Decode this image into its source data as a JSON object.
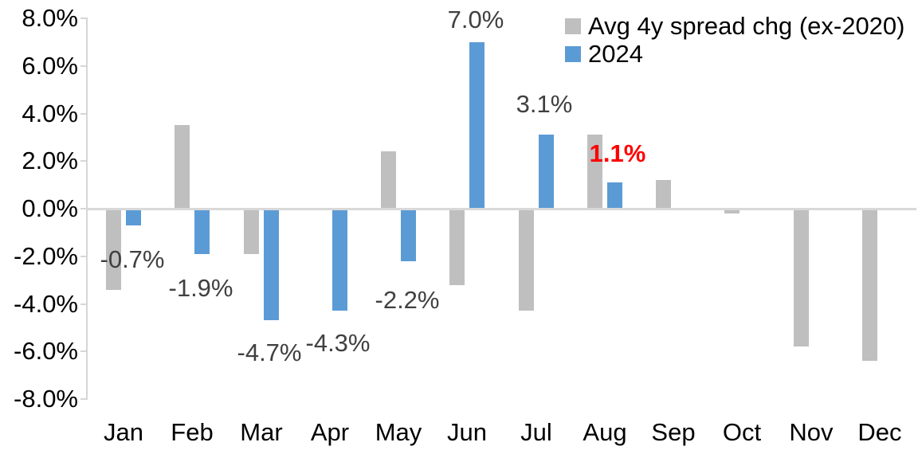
{
  "chart_data": {
    "type": "bar",
    "title": "",
    "xlabel": "",
    "ylabel": "",
    "categories": [
      "Jan",
      "Feb",
      "Mar",
      "Apr",
      "May",
      "Jun",
      "Jul",
      "Aug",
      "Sep",
      "Oct",
      "Nov",
      "Dec"
    ],
    "series": [
      {
        "name": "Avg 4y spread chg (ex-2020)",
        "color": "#BFBFBF",
        "values": [
          -3.4,
          3.5,
          -1.9,
          0.0,
          2.4,
          -3.2,
          -4.3,
          3.1,
          1.2,
          -0.2,
          -5.8,
          -6.4
        ]
      },
      {
        "name": "2024",
        "color": "#5B9BD5",
        "values": [
          -0.7,
          -1.9,
          -4.7,
          -4.3,
          -2.2,
          7.0,
          3.1,
          1.1,
          null,
          null,
          null,
          null
        ]
      }
    ],
    "data_labels": [
      {
        "category": "Jan",
        "text": "-0.7%",
        "color": "#404040",
        "bold": false,
        "dx": -2,
        "gap": 27
      },
      {
        "category": "Feb",
        "text": "-1.9%",
        "color": "#404040",
        "bold": false,
        "dx": -2,
        "gap": 27
      },
      {
        "category": "Mar",
        "text": "-4.7%",
        "color": "#404040",
        "bold": false,
        "dx": -2,
        "gap": 25
      },
      {
        "category": "Apr",
        "text": "-4.3%",
        "color": "#404040",
        "bold": false,
        "dx": -2,
        "gap": 25
      },
      {
        "category": "May",
        "text": "-2.2%",
        "color": "#404040",
        "bold": false,
        "dx": -2,
        "gap": 33
      },
      {
        "category": "Jun",
        "text": "7.0%",
        "color": "#404040",
        "bold": false,
        "dx": -2,
        "gap": 12
      },
      {
        "category": "Jul",
        "text": "3.1%",
        "color": "#404040",
        "bold": false,
        "dx": -2,
        "gap": 22
      },
      {
        "category": "Aug",
        "text": "1.1%",
        "color": "#FF0000",
        "bold": true,
        "dx": 4,
        "gap": 20
      }
    ],
    "ylim": [
      -8,
      8
    ],
    "ytick_step": 2,
    "ytick_labels": [
      "8.0%",
      "6.0%",
      "4.0%",
      "2.0%",
      "0.0%",
      "-2.0%",
      "-4.0%",
      "-6.0%",
      "-8.0%"
    ],
    "legend": {
      "position": "top-right",
      "entries": [
        "Avg 4y spread chg (ex-2020)",
        "2024"
      ]
    },
    "grid": "zero-line-only"
  },
  "colors": {
    "axis_line": "#D6D6D6",
    "zero_line": "#D9D9D9",
    "tick": "#C9C9C9",
    "axis_text": "#000000",
    "data_label_default": "#404040",
    "data_label_highlight": "#FF0000",
    "background": "#FFFFFF"
  }
}
